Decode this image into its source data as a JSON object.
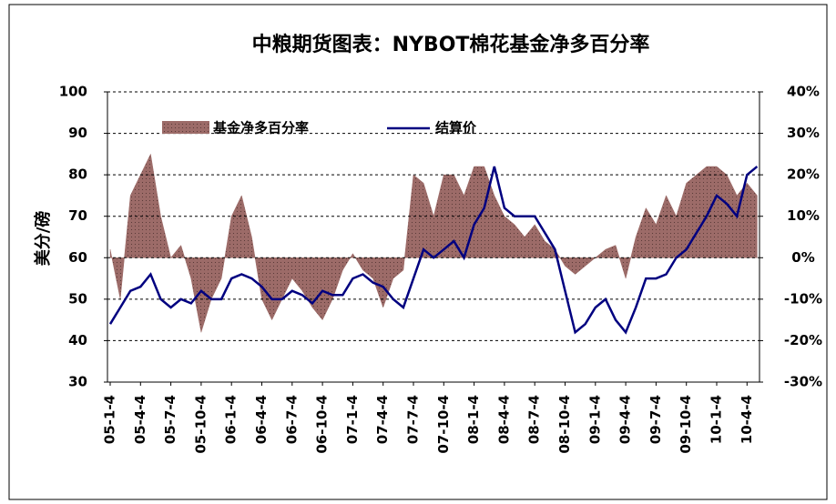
{
  "chart_data": {
    "type": "area-line",
    "title": "中粮期货图表：NYBOT棉花基金净多百分率",
    "y_label": "美分/磅",
    "categories": [
      "05-1-4",
      null,
      null,
      "05-4-4",
      null,
      null,
      "05-7-4",
      null,
      null,
      "05-10-4",
      null,
      null,
      "06-1-4",
      null,
      null,
      "06-4-4",
      null,
      null,
      "06-7-4",
      null,
      null,
      "06-10-4",
      null,
      null,
      "07-1-4",
      null,
      null,
      "07-4-4",
      null,
      null,
      "07-7-4",
      null,
      null,
      "07-10-4",
      null,
      null,
      "08-1-4",
      null,
      null,
      "08-4-4",
      null,
      null,
      "08-7-4",
      null,
      null,
      "08-10-4",
      null,
      null,
      "09-1-4",
      null,
      null,
      "09-4-4",
      null,
      null,
      "09-7-4",
      null,
      null,
      "09-10-4",
      null,
      null,
      "10-1-4",
      null,
      null,
      "10-4-4",
      null
    ],
    "series": [
      {
        "name": "基金净多百分率",
        "color": "#9c6b68",
        "axis": "y2",
        "values": [
          2,
          -10,
          15,
          20,
          25,
          10,
          0,
          3,
          -5,
          -18,
          -10,
          -5,
          10,
          15,
          5,
          -10,
          -15,
          -10,
          -5,
          -8,
          -12,
          -15,
          -10,
          -3,
          1,
          -3,
          -5,
          -12,
          -5,
          -3,
          20,
          18,
          10,
          20,
          20,
          15,
          22,
          22,
          15,
          10,
          8,
          5,
          8,
          4,
          2,
          -2,
          -4,
          -2,
          0,
          2,
          3,
          -5,
          5,
          12,
          8,
          15,
          10,
          18,
          20,
          22,
          22,
          20,
          15,
          18,
          15
        ]
      },
      {
        "name": "结算价",
        "color": "#000080",
        "values": [
          44,
          48,
          52,
          53,
          56,
          50,
          48,
          50,
          49,
          52,
          50,
          50,
          55,
          56,
          55,
          53,
          50,
          50,
          52,
          51,
          49,
          52,
          51,
          51,
          55,
          56,
          54,
          53,
          50,
          48,
          55,
          62,
          60,
          62,
          64,
          60,
          68,
          72,
          82,
          72,
          70,
          70,
          70,
          66,
          62,
          52,
          42,
          44,
          48,
          50,
          45,
          42,
          48,
          55,
          55,
          56,
          60,
          62,
          66,
          70,
          75,
          73,
          70,
          80,
          82
        ]
      }
    ],
    "ylim": [
      30,
      100
    ],
    "yticks": [
      30,
      40,
      50,
      60,
      70,
      80,
      90,
      100
    ],
    "y2lim": [
      -30,
      40
    ],
    "y2ticks": [
      {
        "value": -30,
        "label": "-30%"
      },
      {
        "value": -20,
        "label": "-20%"
      },
      {
        "value": -10,
        "label": "-10%"
      },
      {
        "value": 0,
        "label": "0%"
      },
      {
        "value": 10,
        "label": "10%"
      },
      {
        "value": 20,
        "label": "20%"
      },
      {
        "value": 30,
        "label": "30%"
      },
      {
        "value": 40,
        "label": "40%"
      }
    ],
    "grid": true
  }
}
